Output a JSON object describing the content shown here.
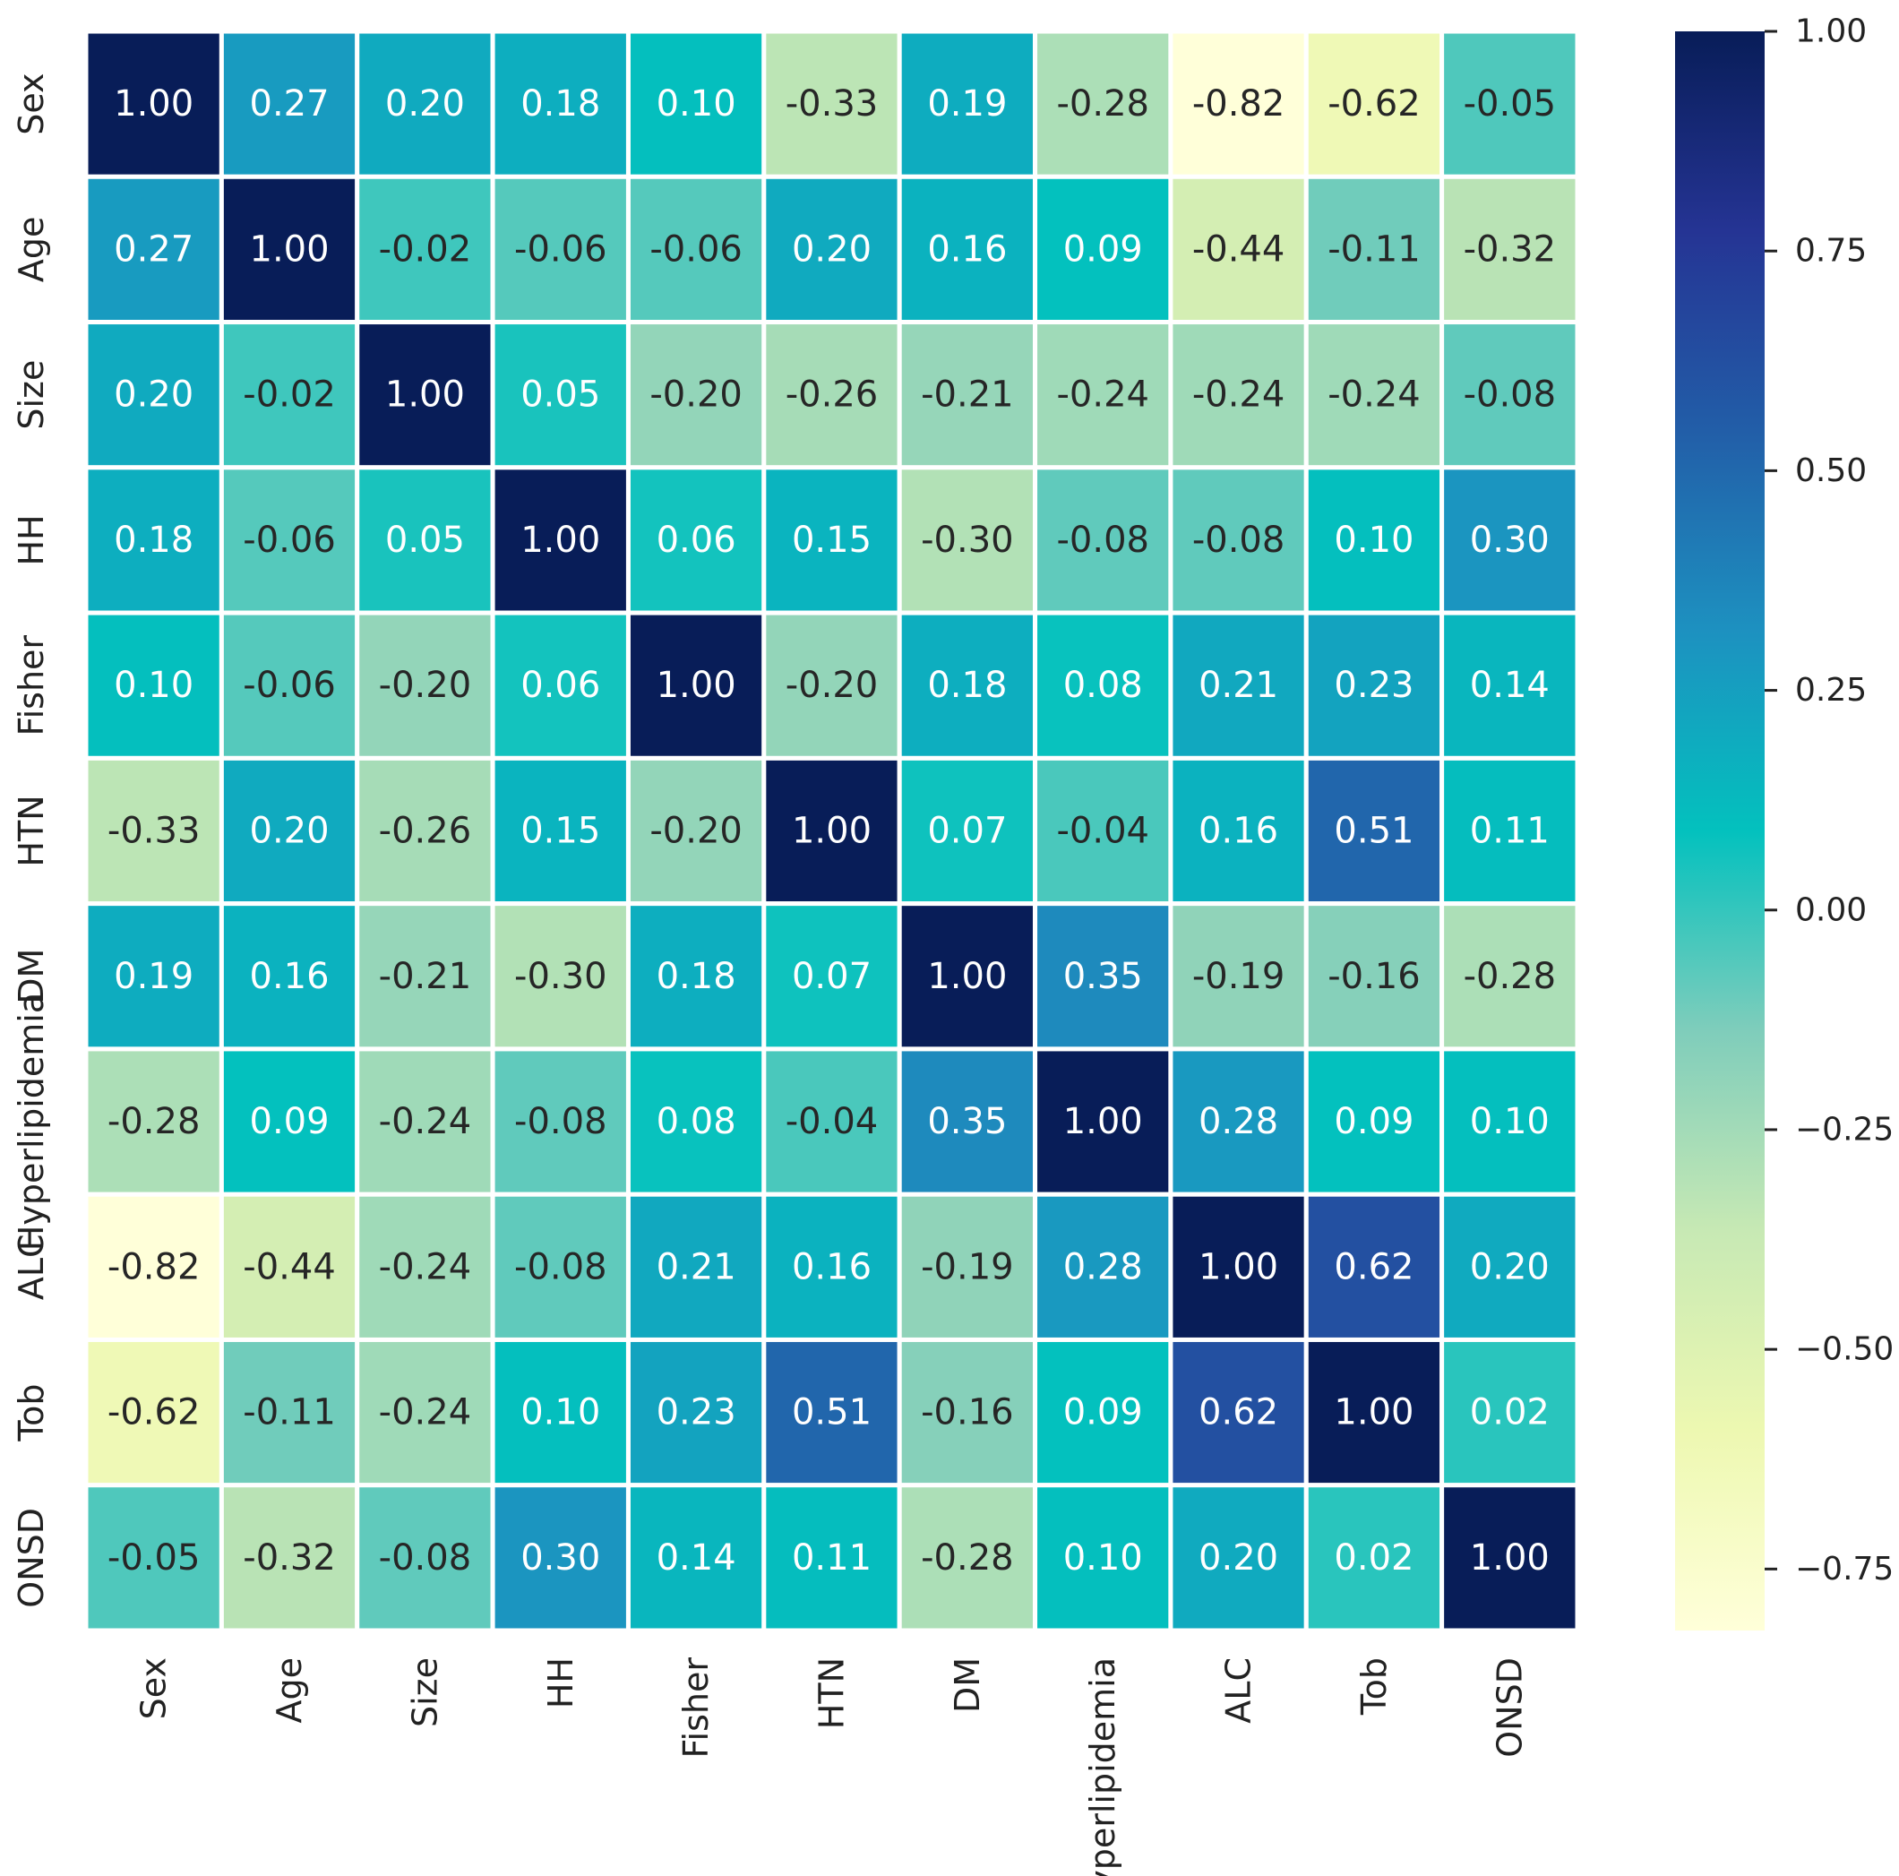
{
  "chart_data": {
    "type": "heatmap",
    "title": "",
    "xlabel": "",
    "ylabel": "",
    "labels": [
      "Sex",
      "Age",
      "Size",
      "HH",
      "Fisher",
      "HTN",
      "DM",
      "Hyperlipidemia",
      "ALC",
      "Tob",
      "ONSD"
    ],
    "values": [
      [
        1.0,
        0.27,
        0.2,
        0.18,
        0.1,
        -0.33,
        0.19,
        -0.28,
        -0.82,
        -0.62,
        -0.05
      ],
      [
        0.27,
        1.0,
        -0.02,
        -0.06,
        -0.06,
        0.2,
        0.16,
        0.09,
        -0.44,
        -0.11,
        -0.32
      ],
      [
        0.2,
        -0.02,
        1.0,
        0.05,
        -0.2,
        -0.26,
        -0.21,
        -0.24,
        -0.24,
        -0.24,
        -0.08
      ],
      [
        0.18,
        -0.06,
        0.05,
        1.0,
        0.06,
        0.15,
        -0.3,
        -0.08,
        -0.08,
        0.1,
        0.3
      ],
      [
        0.1,
        -0.06,
        -0.2,
        0.06,
        1.0,
        -0.2,
        0.18,
        0.08,
        0.21,
        0.23,
        0.14
      ],
      [
        -0.33,
        0.2,
        -0.26,
        0.15,
        -0.2,
        1.0,
        0.07,
        -0.04,
        0.16,
        0.51,
        0.11
      ],
      [
        0.19,
        0.16,
        -0.21,
        -0.3,
        0.18,
        0.07,
        1.0,
        0.35,
        -0.19,
        -0.16,
        -0.28
      ],
      [
        -0.28,
        0.09,
        -0.24,
        -0.08,
        0.08,
        -0.04,
        0.35,
        1.0,
        0.28,
        0.09,
        0.1
      ],
      [
        -0.82,
        -0.44,
        -0.24,
        -0.08,
        0.21,
        0.16,
        -0.19,
        0.28,
        1.0,
        0.62,
        0.2
      ],
      [
        -0.62,
        -0.11,
        -0.24,
        0.1,
        0.23,
        0.51,
        -0.16,
        0.09,
        0.62,
        1.0,
        0.02
      ],
      [
        -0.05,
        -0.32,
        -0.08,
        0.3,
        0.14,
        0.11,
        -0.28,
        0.1,
        0.2,
        0.02,
        1.0
      ]
    ],
    "value_range": [
      -0.82,
      1.0
    ],
    "colormap": "YlGnBu",
    "colorbar": {
      "ticks": [
        1.0,
        0.75,
        0.5,
        0.25,
        0.0,
        -0.25,
        -0.5,
        -0.75
      ],
      "tick_labels": [
        "1.00",
        "0.75",
        "0.50",
        "0.25",
        "0.00",
        "−0.25",
        "−0.50",
        "−0.75"
      ]
    },
    "colors": {
      "stops": [
        "#ffffd9",
        "#edf8b1",
        "#c7e9b4",
        "#7fcdbb",
        "#03c1be",
        "#1d91c0",
        "#225ea8",
        "#253494",
        "#081d58"
      ],
      "light_text": "#ffffff",
      "dark_text": "#262626",
      "grid_line": "#ffffff"
    }
  }
}
